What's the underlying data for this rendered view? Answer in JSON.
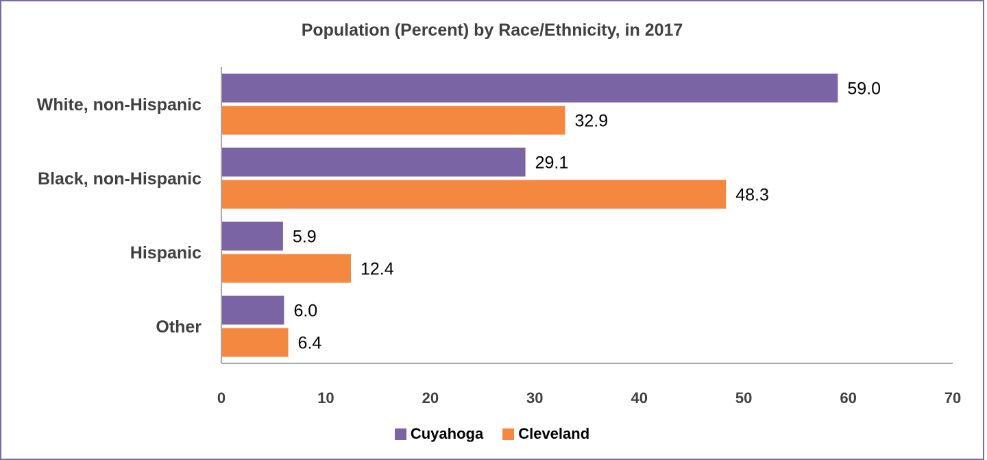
{
  "chart_data": {
    "type": "bar",
    "orientation": "horizontal",
    "title": "Population (Percent) by Race/Ethnicity, in 2017",
    "categories": [
      "White, non-Hispanic",
      "Black, non-Hispanic",
      "Hispanic",
      "Other"
    ],
    "series": [
      {
        "name": "Cuyahoga",
        "color": "#7b64a4",
        "values": [
          59.0,
          29.1,
          5.9,
          6.0
        ],
        "labels": [
          "59.0",
          "29.1",
          "5.9",
          "6.0"
        ]
      },
      {
        "name": "Cleveland",
        "color": "#f58840",
        "values": [
          32.9,
          48.3,
          12.4,
          6.4
        ],
        "labels": [
          "32.9",
          "48.3",
          "12.4",
          "6.4"
        ]
      }
    ],
    "xlim": [
      0,
      70
    ],
    "xticks": [
      "0",
      "10",
      "20",
      "30",
      "40",
      "50",
      "60",
      "70"
    ],
    "xlabel": "",
    "ylabel": "",
    "grid": false,
    "legend_position": "bottom"
  }
}
